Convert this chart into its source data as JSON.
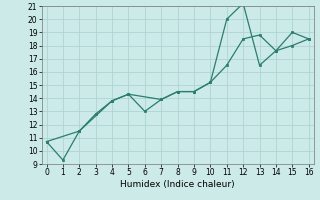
{
  "xlabel": "Humidex (Indice chaleur)",
  "line1_x": [
    0,
    1,
    2,
    3,
    4,
    5,
    6,
    7,
    8,
    9,
    10,
    11,
    12,
    13,
    14,
    15,
    16
  ],
  "line1_y": [
    10.7,
    9.3,
    11.5,
    12.8,
    13.8,
    14.3,
    13.0,
    13.9,
    14.5,
    14.5,
    15.2,
    20.0,
    21.2,
    16.5,
    17.6,
    19.0,
    18.5
  ],
  "line2_x": [
    0,
    2,
    4,
    5,
    7,
    8,
    9,
    10,
    11,
    12,
    13,
    14,
    15,
    16
  ],
  "line2_y": [
    10.7,
    11.5,
    13.8,
    14.3,
    13.9,
    14.5,
    14.5,
    15.2,
    16.5,
    18.5,
    18.8,
    17.6,
    18.0,
    18.5
  ],
  "line_color": "#2a7d6f",
  "xlim": [
    0,
    16
  ],
  "ylim": [
    9,
    21
  ],
  "yticks": [
    9,
    10,
    11,
    12,
    13,
    14,
    15,
    16,
    17,
    18,
    19,
    20,
    21
  ],
  "xticks": [
    0,
    1,
    2,
    3,
    4,
    5,
    6,
    7,
    8,
    9,
    10,
    11,
    12,
    13,
    14,
    15,
    16
  ],
  "bg_color": "#cceae8",
  "grid_color": "#aed4d2",
  "xlabel_fontsize": 6.5,
  "tick_fontsize": 5.5,
  "marker_size": 2.0,
  "line_width": 0.9
}
